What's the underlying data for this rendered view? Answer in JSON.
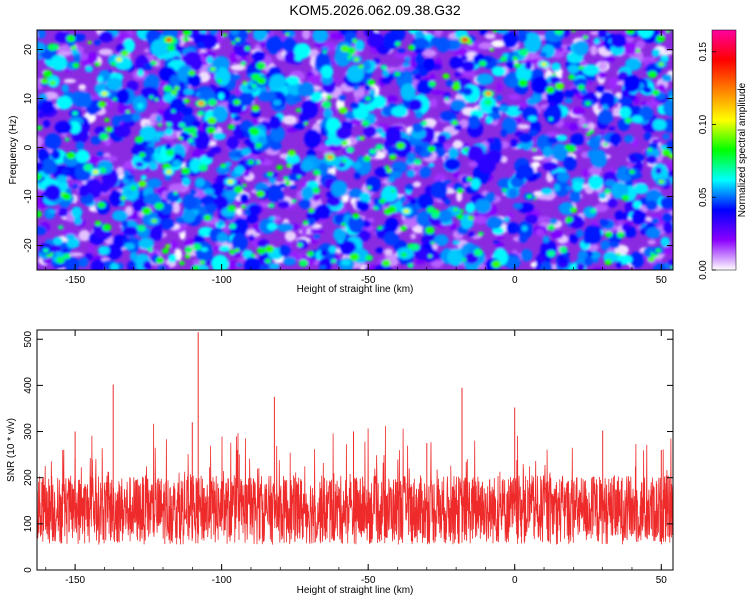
{
  "title": "KOM5.2026.062.09.38.G32",
  "chart_data": [
    {
      "type": "heatmap",
      "xlabel": "Height of straight line (km)",
      "ylabel": "Frequency (Hz)",
      "xlim": [
        -163,
        54
      ],
      "ylim": [
        -25,
        24
      ],
      "xticks": [
        -150,
        -100,
        -50,
        0,
        50
      ],
      "xtick_labels": [
        "-150",
        "-100",
        "-50",
        "0",
        "50"
      ],
      "yticks": [
        20,
        10,
        0,
        -10,
        -20
      ],
      "ytick_labels": [
        "20",
        "10",
        "0",
        "-10",
        "-20"
      ],
      "colorbar": {
        "label": "Normalized spectral amplitude",
        "range": [
          0.0,
          0.165
        ],
        "ticks": [
          0.0,
          0.05,
          0.1,
          0.15
        ],
        "tick_labels": [
          "0.00",
          "0.05",
          "0.10",
          "0.15"
        ],
        "colormap": [
          "#ffffff",
          "#8a00ff",
          "#0000ff",
          "#00ffff",
          "#00ff00",
          "#ffff00",
          "#ff8000",
          "#ff0000",
          "#ff00a0"
        ]
      },
      "peaks": [
        {
          "x": -118,
          "y": 22,
          "value": 0.13
        },
        {
          "x": -17,
          "y": 22,
          "value": 0.15
        },
        {
          "x": -135,
          "y": 18,
          "value": 0.1
        },
        {
          "x": -103,
          "y": 16,
          "value": 0.09
        },
        {
          "x": -54,
          "y": 18,
          "value": 0.09
        },
        {
          "x": -40,
          "y": 15,
          "value": 0.08
        },
        {
          "x": 10,
          "y": 17,
          "value": 0.1
        },
        {
          "x": 50,
          "y": 17,
          "value": 0.09
        },
        {
          "x": -140,
          "y": 11,
          "value": 0.1
        },
        {
          "x": -107,
          "y": 9,
          "value": 0.12
        },
        {
          "x": -9,
          "y": 11,
          "value": 0.12
        },
        {
          "x": -50,
          "y": 10,
          "value": 0.08
        },
        {
          "x": 25,
          "y": 9,
          "value": 0.08
        },
        {
          "x": -150,
          "y": 7,
          "value": 0.07
        },
        {
          "x": -63,
          "y": -2,
          "value": 0.12
        },
        {
          "x": -118,
          "y": -5,
          "value": 0.1
        },
        {
          "x": -90,
          "y": -3,
          "value": 0.08
        },
        {
          "x": 40,
          "y": -5,
          "value": 0.08
        },
        {
          "x": -143,
          "y": -5,
          "value": 0.1
        },
        {
          "x": -97,
          "y": -7,
          "value": 0.1
        },
        {
          "x": -37,
          "y": -13,
          "value": 0.1
        },
        {
          "x": 50,
          "y": -7,
          "value": 0.09
        },
        {
          "x": -123,
          "y": -15,
          "value": 0.09
        },
        {
          "x": 5,
          "y": -10,
          "value": 0.08
        },
        {
          "x": -160,
          "y": -21,
          "value": 0.07
        },
        {
          "x": 49,
          "y": -21,
          "value": 0.08
        }
      ]
    },
    {
      "type": "line",
      "xlabel": "Height of straight line (km)",
      "ylabel": "SNR (10 * v/v)",
      "xlim": [
        -163,
        54
      ],
      "ylim": [
        0,
        520
      ],
      "xticks": [
        -150,
        -100,
        -50,
        0,
        50
      ],
      "xtick_labels": [
        "-150",
        "-100",
        "-50",
        "0",
        "50"
      ],
      "yticks": [
        0,
        100,
        200,
        300,
        400,
        500
      ],
      "ytick_labels": [
        "0",
        "100",
        "200",
        "300",
        "400",
        "500"
      ],
      "color": "#ee2a2a",
      "baseline_mean": 130,
      "spikes": [
        {
          "x": -108,
          "y": 515
        },
        {
          "x": -110,
          "y": 320
        },
        {
          "x": -137,
          "y": 402
        },
        {
          "x": -82,
          "y": 375
        },
        {
          "x": -18,
          "y": 395
        },
        {
          "x": 0,
          "y": 352
        },
        {
          "x": -150,
          "y": 300
        },
        {
          "x": -55,
          "y": 300
        },
        {
          "x": 30,
          "y": 302
        },
        {
          "x": -30,
          "y": 275
        },
        {
          "x": 50,
          "y": 260
        }
      ]
    }
  ]
}
